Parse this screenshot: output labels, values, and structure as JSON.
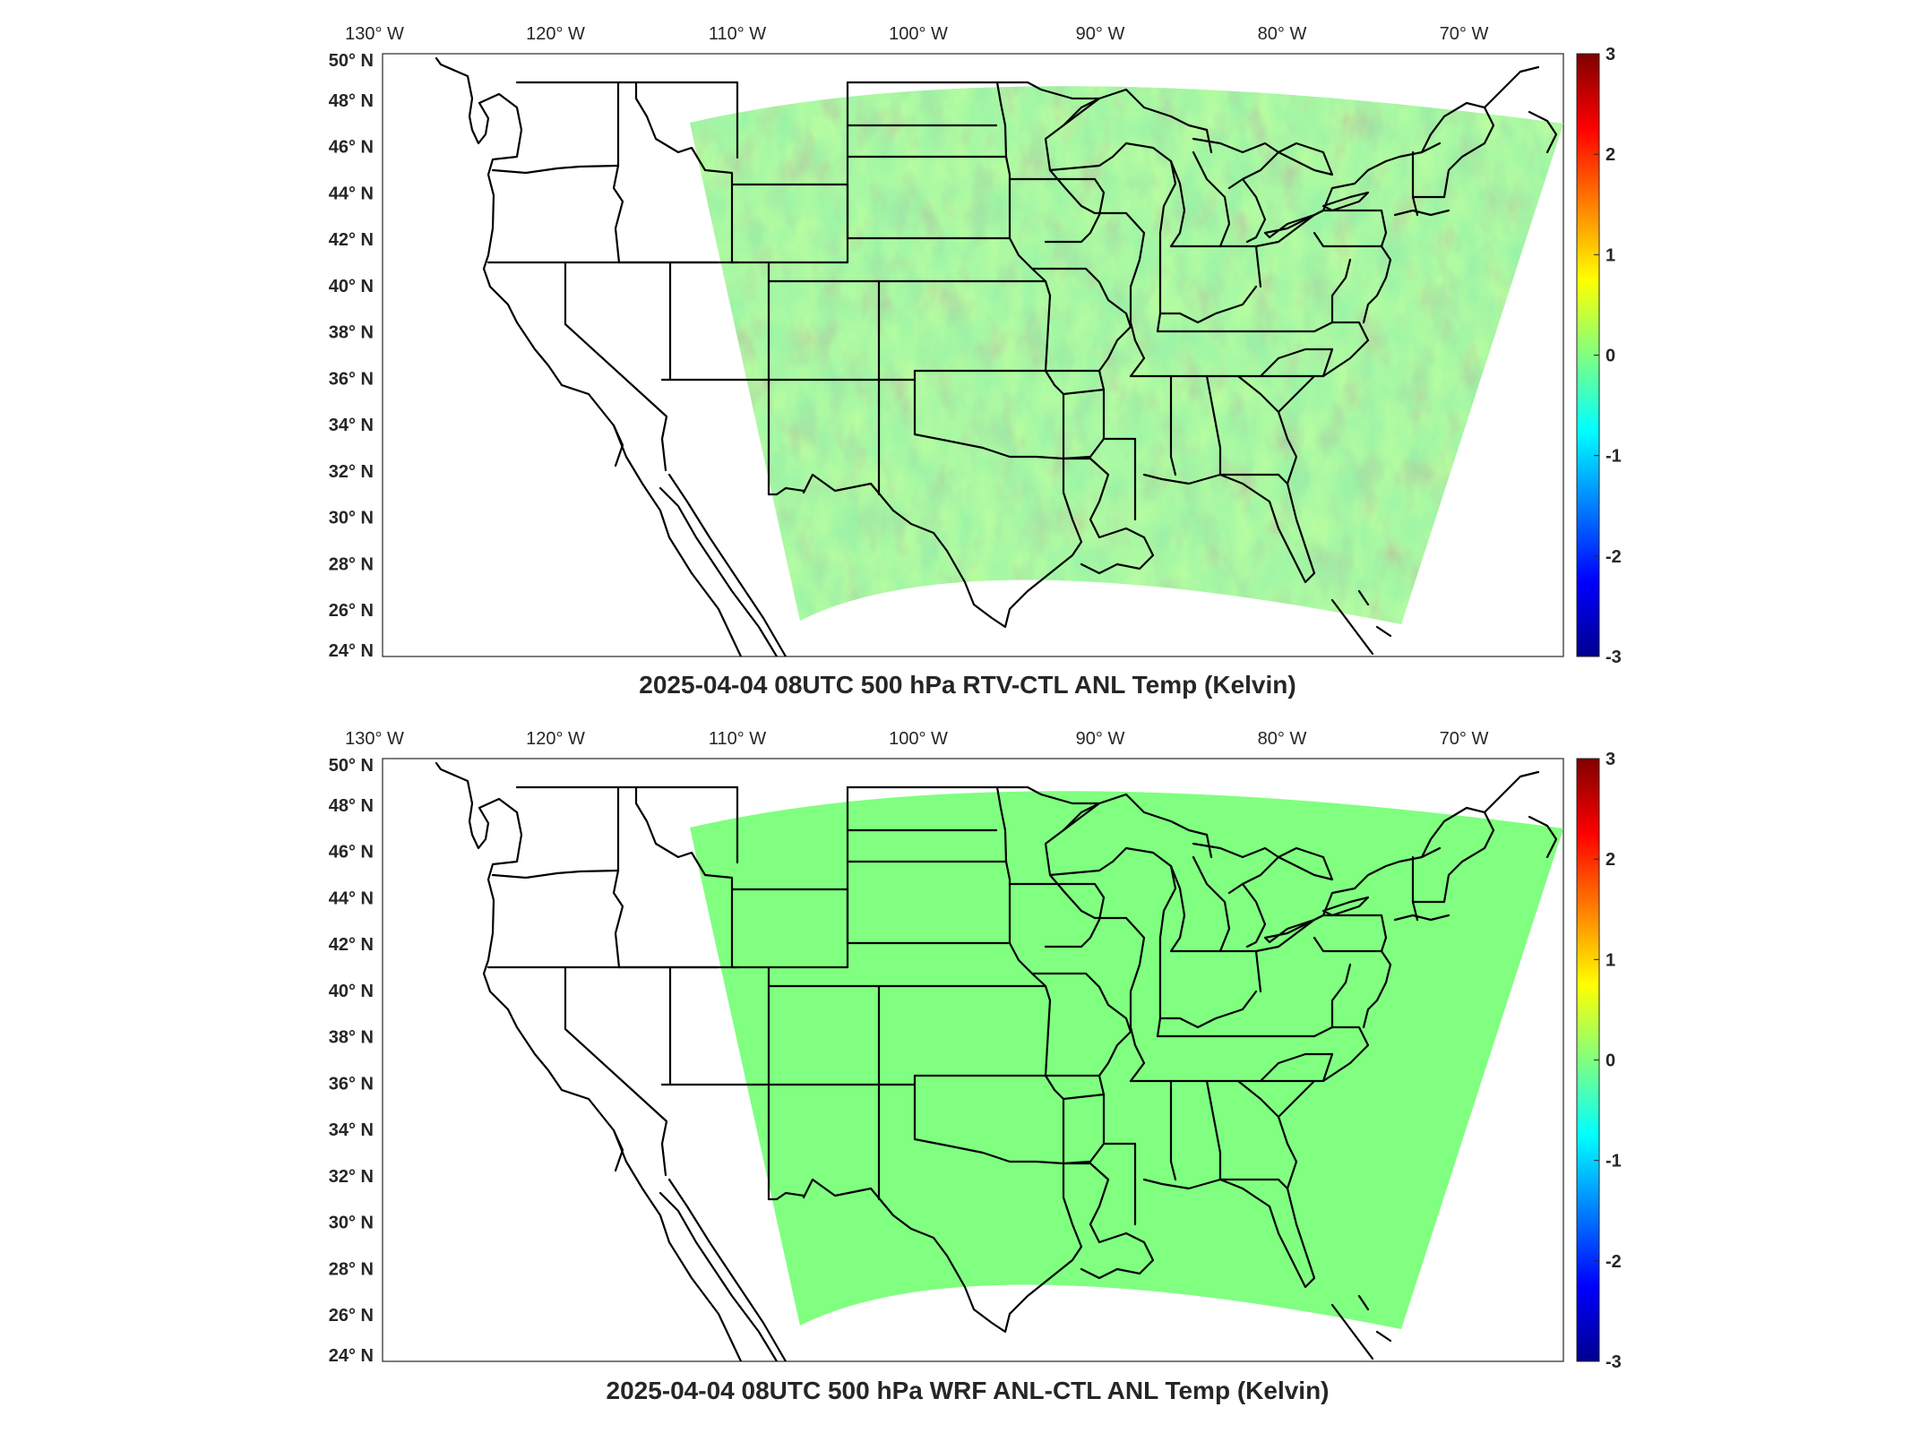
{
  "panels": [
    {
      "id": "top",
      "title": "2025-04-04 08UTC 500 hPa RTV-CTL ANL Temp (Kelvin)",
      "field": "noisy",
      "lon_labels": [
        "130° W",
        "120° W",
        "110° W",
        "100° W",
        "90° W",
        "80° W",
        "70° W"
      ],
      "lat_labels": [
        "50° N",
        "48° N",
        "46° N",
        "44° N",
        "42° N",
        "40° N",
        "38° N",
        "36° N",
        "34° N",
        "32° N",
        "30° N",
        "28° N",
        "26° N",
        "24° N"
      ],
      "colorbar_ticks": [
        "3",
        "2",
        "1",
        "0",
        "-1",
        "-2",
        "-3"
      ]
    },
    {
      "id": "bottom",
      "title": "2025-04-04 08UTC 500 hPa WRF ANL-CTL ANL Temp (Kelvin)",
      "field": "uniform",
      "lon_labels": [
        "130° W",
        "120° W",
        "110° W",
        "100° W",
        "90° W",
        "80° W",
        "70° W"
      ],
      "lat_labels": [
        "50° N",
        "48° N",
        "46° N",
        "44° N",
        "42° N",
        "40° N",
        "38° N",
        "36° N",
        "34° N",
        "32° N",
        "30° N",
        "28° N",
        "26° N",
        "24° N"
      ],
      "colorbar_ticks": [
        "3",
        "2",
        "1",
        "0",
        "-1",
        "-2",
        "-3"
      ]
    }
  ],
  "colorbar": {
    "min": -3,
    "max": 3,
    "colormap": "jet"
  },
  "colors": {
    "uniform_field": "#80ff80",
    "border": "#000000",
    "frame": "#262626"
  }
}
